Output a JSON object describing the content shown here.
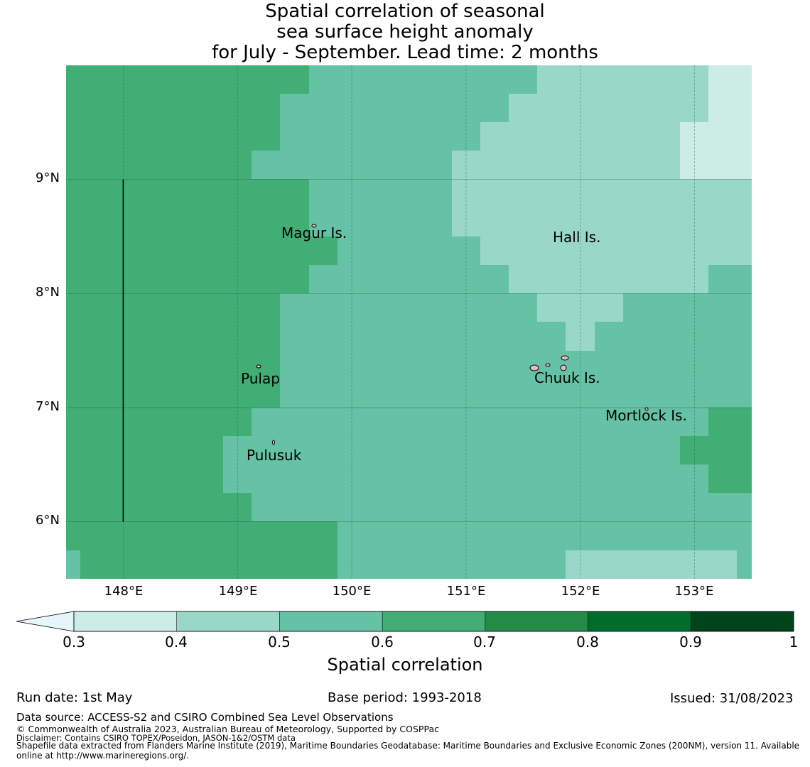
{
  "title": {
    "line1": "Spatial correlation of seasonal",
    "line2": "sea surface height anomaly",
    "line3": "for July - September. Lead time: 2 months"
  },
  "map": {
    "lon_range": [
      147.5,
      153.5
    ],
    "lat_range": [
      5.5,
      10.0
    ],
    "x_ticks": [
      "148°E",
      "149°E",
      "150°E",
      "151°E",
      "152°E",
      "153°E"
    ],
    "y_ticks": [
      "9°N",
      "8°N",
      "7°N",
      "6°N"
    ],
    "places": [
      {
        "name": "Magur Is.",
        "lon": 149.65,
        "lat": 8.6
      },
      {
        "name": "Hall Is.",
        "lon": 151.95,
        "lat": 8.45
      },
      {
        "name": "Pulap",
        "lon": 149.2,
        "lat": 7.4
      },
      {
        "name": "Chuuk Is.",
        "lon": 151.8,
        "lat": 7.4
      },
      {
        "name": "Mortlock Is.",
        "lon": 152.6,
        "lat": 7.0
      },
      {
        "name": "Pulusuk",
        "lon": 149.3,
        "lat": 6.7
      }
    ],
    "boundary_line": {
      "lon": 148.0,
      "lat_from": 6.0,
      "lat_to": 9.0
    }
  },
  "colorbar": {
    "label": "Spatial correlation",
    "ticks": [
      "0.3",
      "0.4",
      "0.5",
      "0.6",
      "0.7",
      "0.8",
      "0.9",
      "1"
    ],
    "under_color": "#e5f5f9",
    "colors": [
      "#ccece6",
      "#99d8c9",
      "#66c2a4",
      "#41ae76",
      "#238b45",
      "#006d2c",
      "#00441b"
    ]
  },
  "footer": {
    "run_date": "Run date: 1st May",
    "base_period": "Base period: 1993-2018",
    "issued": "Issued: 31/08/2023",
    "data_source": "Data source: ACCESS-S2 and CSIRO Combined Sea Level Observations",
    "copyright": "© Commonwealth of Australia 2023, Australian Bureau of Meteorology, Supported by COSPPac",
    "disclaimer": "Disclaimer: Contains CSIRO TOPEX/Poseidon, JASON-1&2/OSTM data",
    "shapefile_1": "Shapefile data extracted from Flanders Marine Institute (2019), Maritime Boundaries Geodatabase: Maritime Boundaries and Exclusive Economic Zones (200NM), version 11. Available",
    "shapefile_2": "online at http://www.marineregions.org/."
  }
}
